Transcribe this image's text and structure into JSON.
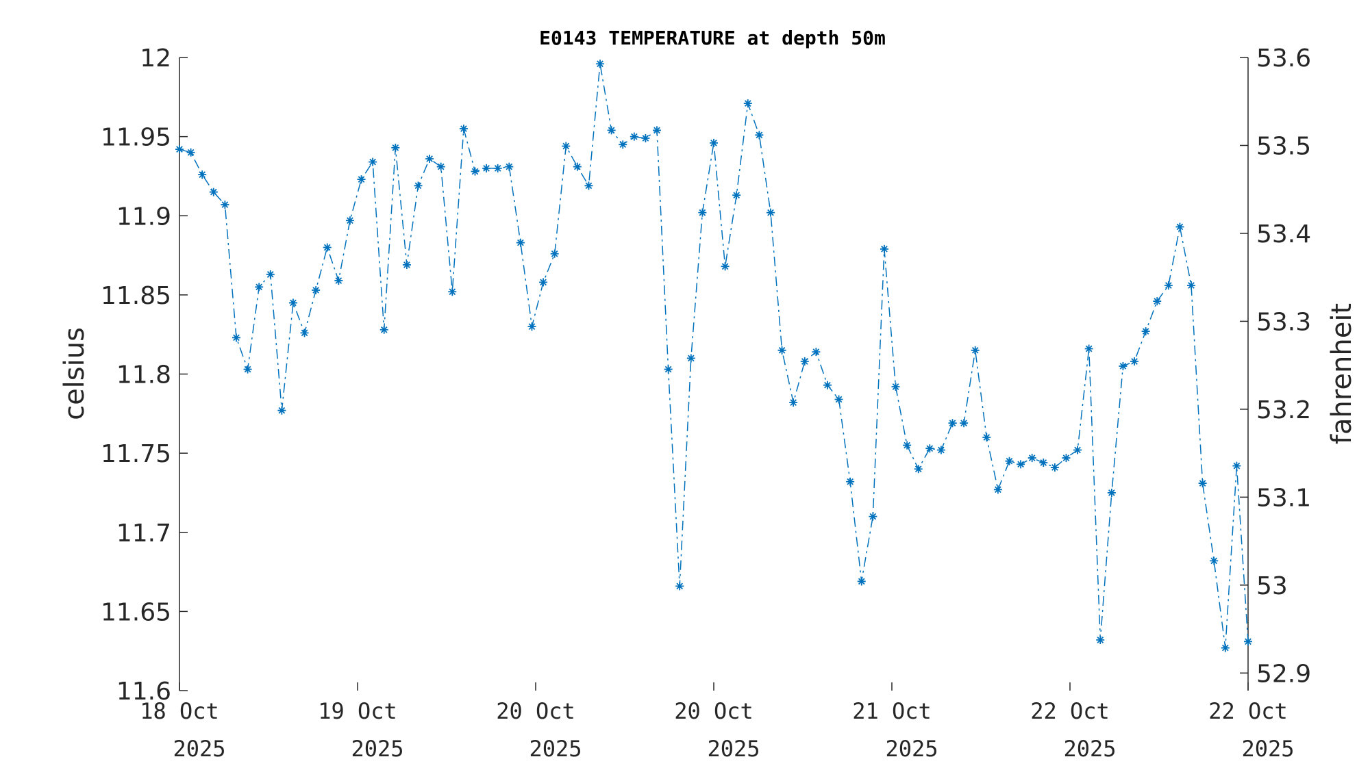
{
  "chart_data": {
    "type": "line",
    "title": "E0143 TEMPERATURE at depth 50m",
    "ylabel_left": "celsius",
    "ylabel_right": "fahrenheit",
    "ylim_left": [
      11.6,
      12
    ],
    "ylim_right_approx": [
      52.88,
      53.6
    ],
    "left_ticks": [
      "11.6",
      "11.65",
      "11.7",
      "11.75",
      "11.8",
      "11.85",
      "11.9",
      "11.95",
      "12"
    ],
    "right_ticks": [
      "52.9",
      "53",
      "53.1",
      "53.2",
      "53.3",
      "53.4",
      "53.5",
      "53.6"
    ],
    "x_ticks": [
      {
        "line1": "18 Oct",
        "line2": "2025"
      },
      {
        "line1": "19 Oct",
        "line2": "2025"
      },
      {
        "line1": "20 Oct",
        "line2": "2025"
      },
      {
        "line1": "20 Oct",
        "line2": "2025"
      },
      {
        "line1": "21 Oct",
        "line2": "2025"
      },
      {
        "line1": "22 Oct",
        "line2": "2025"
      },
      {
        "line1": "22 Oct",
        "line2": "2025"
      }
    ],
    "series_color": "#0072BD",
    "line_style": "dash-dot",
    "marker": "asterisk",
    "values": [
      11.942,
      11.94,
      11.926,
      11.915,
      11.907,
      11.823,
      11.803,
      11.855,
      11.863,
      11.777,
      11.845,
      11.826,
      11.853,
      11.88,
      11.859,
      11.897,
      11.923,
      11.934,
      11.828,
      11.943,
      11.869,
      11.919,
      11.936,
      11.931,
      11.852,
      11.955,
      11.928,
      11.93,
      11.93,
      11.931,
      11.883,
      11.83,
      11.858,
      11.876,
      11.944,
      11.931,
      11.919,
      11.996,
      11.954,
      11.945,
      11.95,
      11.949,
      11.954,
      11.803,
      11.666,
      11.81,
      11.902,
      11.946,
      11.868,
      11.913,
      11.971,
      11.951,
      11.902,
      11.815,
      11.782,
      11.808,
      11.814,
      11.793,
      11.784,
      11.732,
      11.669,
      11.71,
      11.879,
      11.792,
      11.755,
      11.74,
      11.753,
      11.752,
      11.769,
      11.769,
      11.815,
      11.76,
      11.727,
      11.745,
      11.743,
      11.747,
      11.744,
      11.741,
      11.747,
      11.752,
      11.816,
      11.632,
      11.725,
      11.805,
      11.808,
      11.827,
      11.846,
      11.856,
      11.893,
      11.856,
      11.731,
      11.682,
      11.627,
      11.742,
      11.631
    ]
  }
}
